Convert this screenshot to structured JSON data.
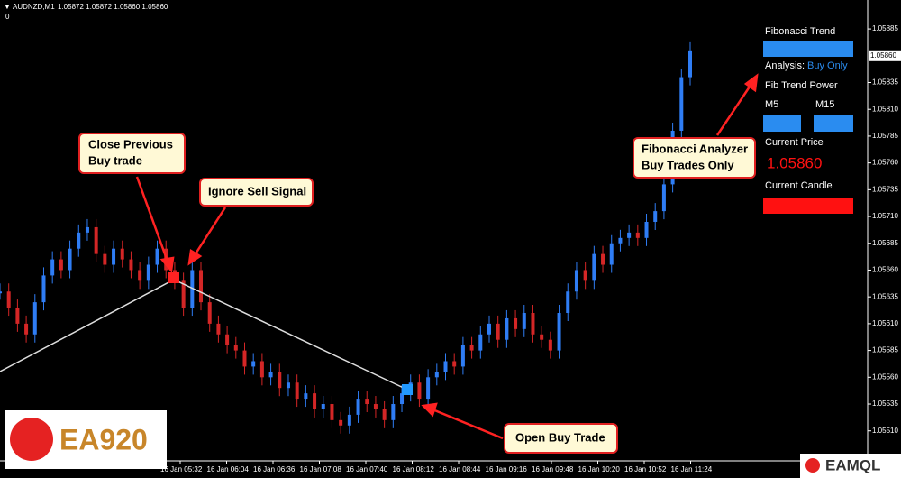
{
  "header": {
    "symbol": "AUDNZD,M1",
    "quote": "1.05872 1.05872 1.05860 1.05860",
    "indicator": "0"
  },
  "price_axis": {
    "range": [
      1.05482,
      1.05912
    ],
    "ticks": [
      {
        "value": 1.0551,
        "label": "1.05510"
      },
      {
        "value": 1.05535,
        "label": "1.05535"
      },
      {
        "value": 1.0556,
        "label": "1.05560"
      },
      {
        "value": 1.05585,
        "label": "1.05585"
      },
      {
        "value": 1.0561,
        "label": "1.05610"
      },
      {
        "value": 1.05635,
        "label": "1.05635"
      },
      {
        "value": 1.0566,
        "label": "1.05660"
      },
      {
        "value": 1.05685,
        "label": "1.05685"
      },
      {
        "value": 1.0571,
        "label": "1.05710"
      },
      {
        "value": 1.05735,
        "label": "1.05735"
      },
      {
        "value": 1.0576,
        "label": "1.05760"
      },
      {
        "value": 1.05785,
        "label": "1.05785"
      },
      {
        "value": 1.0581,
        "label": "1.05810"
      },
      {
        "value": 1.05835,
        "label": "1.05835"
      },
      {
        "value": 1.05885,
        "label": "1.05885"
      }
    ],
    "current": {
      "value": 1.0586,
      "label": "1.05860"
    }
  },
  "time_axis": {
    "labels": [
      "16 Jan 05:32",
      "16 Jan 06:04",
      "16 Jan 06:36",
      "16 Jan 07:08",
      "16 Jan 07:40",
      "16 Jan 08:12",
      "16 Jan 08:44",
      "16 Jan 09:16",
      "16 Jan 09:48",
      "16 Jan 10:20",
      "16 Jan 10:52",
      "16 Jan 11:24"
    ]
  },
  "price_series": {
    "closes": [
      1.0564,
      1.05625,
      1.0561,
      1.056,
      1.0563,
      1.05655,
      1.0567,
      1.0566,
      1.0568,
      1.05695,
      1.057,
      1.05675,
      1.05665,
      1.0568,
      1.0567,
      1.0566,
      1.0565,
      1.05665,
      1.0568,
      1.0566,
      1.0565,
      1.05625,
      1.0566,
      1.0563,
      1.0561,
      1.056,
      1.0559,
      1.05585,
      1.0557,
      1.05575,
      1.0556,
      1.05565,
      1.0555,
      1.05555,
      1.0554,
      1.05545,
      1.0553,
      1.05535,
      1.0552,
      1.05515,
      1.05525,
      1.0554,
      1.05535,
      1.0553,
      1.0552,
      1.05535,
      1.05545,
      1.05555,
      1.0554,
      1.0556,
      1.05565,
      1.05575,
      1.0557,
      1.0559,
      1.05585,
      1.056,
      1.0561,
      1.05595,
      1.05615,
      1.05605,
      1.0562,
      1.056,
      1.05595,
      1.05585,
      1.0562,
      1.0564,
      1.0566,
      1.0565,
      1.05675,
      1.05665,
      1.05685,
      1.0569,
      1.05695,
      1.0569,
      1.05705,
      1.05715,
      1.0574,
      1.0579,
      1.0584,
      1.05865
    ]
  },
  "annotations": [
    [
      "Close Previous",
      "Buy trade"
    ],
    [
      "Ignore Sell Signal"
    ],
    [
      "Fibonacci Analyzer",
      "Buy Trades Only"
    ],
    [
      "Open Buy Trade"
    ]
  ],
  "panel": {
    "title": "Fibonacci Trend",
    "analysis_label": "Analysis:",
    "analysis_value": "Buy Only",
    "power_title": "Fib Trend Power",
    "tf1": "M5",
    "tf2": "M15",
    "price_title": "Current Price",
    "price_value": "1.05860",
    "candle_title": "Current Candle"
  },
  "logos": {
    "left": "EA920",
    "right": "EAMQL"
  }
}
